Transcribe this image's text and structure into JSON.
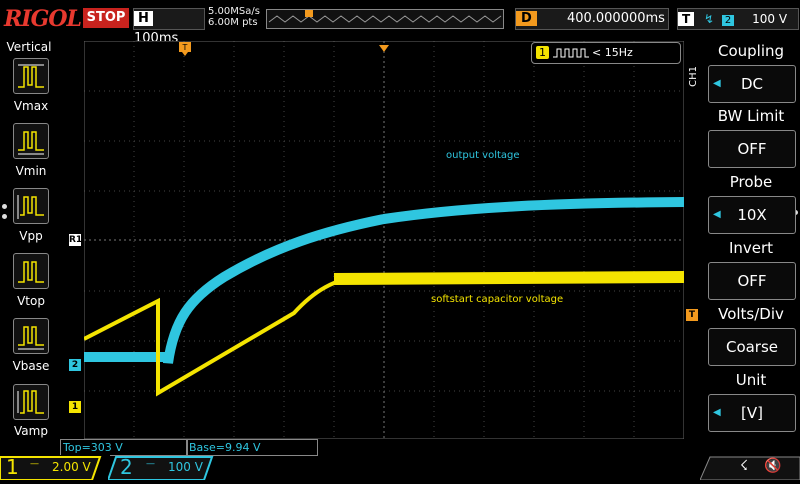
{
  "topbar": {
    "brand": "RIGOL",
    "run_state": "STOP",
    "horiz_label": "H",
    "timebase": "100ms",
    "sample_rate": "5.00MSa/s",
    "mem_depth": "6.00M pts",
    "delay_label": "D",
    "delay_value": "400.000000ms",
    "trig_label": "T",
    "trig_source": "2",
    "trig_level": "100 V"
  },
  "left_panel": {
    "title": "Vertical",
    "items": [
      {
        "label": "Vmax"
      },
      {
        "label": "Vmin"
      },
      {
        "label": "Vpp"
      },
      {
        "label": "Vtop"
      },
      {
        "label": "Vbase"
      },
      {
        "label": "Vamp"
      }
    ]
  },
  "screen": {
    "freq_channel": "1",
    "freq_value": "< 15Hz",
    "label_output": "output voltage",
    "label_softstart": "softstart capacitor voltage",
    "marker_ch1": "1",
    "marker_ch2": "2",
    "marker_r1": "R1",
    "marker_trig": "T",
    "meas_top": "Top=303 V",
    "meas_base": "Base=9.94 V"
  },
  "right_menu": {
    "channel_tag": "CH1",
    "items": [
      {
        "header": "Coupling",
        "value": "DC"
      },
      {
        "header": "BW Limit",
        "value": "OFF"
      },
      {
        "header": "Probe",
        "value": "10X"
      },
      {
        "header": "Invert",
        "value": "OFF"
      },
      {
        "header": "Volts/Div",
        "value": "Coarse"
      },
      {
        "header": "Unit",
        "value": "[V]"
      }
    ]
  },
  "bottom": {
    "ch1_num": "1",
    "ch1_scale": "2.00 V",
    "ch2_num": "2",
    "ch2_scale": "100 V"
  },
  "colors": {
    "ch1": "#f4e400",
    "ch2": "#2fc6e0",
    "trigger": "#f39a1e",
    "stop": "#c8231e"
  }
}
